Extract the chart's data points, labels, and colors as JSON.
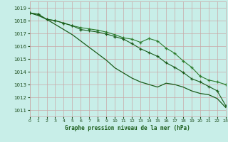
{
  "title": "Graphe pression niveau de la mer (hPa)",
  "bg_color": "#c8eee8",
  "grid_color": "#c8a8a8",
  "line_color1": "#1a5c1a",
  "line_color2": "#2e7d2e",
  "xlim": [
    0,
    23
  ],
  "ylim": [
    1010.5,
    1019.5
  ],
  "yticks": [
    1011,
    1012,
    1013,
    1014,
    1015,
    1016,
    1017,
    1018,
    1019
  ],
  "xticks": [
    0,
    1,
    2,
    3,
    4,
    5,
    6,
    7,
    8,
    9,
    10,
    11,
    12,
    13,
    14,
    15,
    16,
    17,
    18,
    19,
    20,
    21,
    22,
    23
  ],
  "series_smooth": [
    1018.6,
    1018.4,
    1018.1,
    1017.7,
    1017.3,
    1016.9,
    1016.4,
    1015.9,
    1015.4,
    1014.9,
    1014.3,
    1013.9,
    1013.5,
    1013.2,
    1013.0,
    1012.8,
    1013.1,
    1013.0,
    1012.8,
    1012.5,
    1012.3,
    1012.2,
    1011.9,
    1011.2
  ],
  "series_marked1": [
    1018.6,
    1018.5,
    1018.1,
    1018.0,
    1017.8,
    1017.6,
    1017.45,
    1017.35,
    1017.25,
    1017.1,
    1016.9,
    1016.65,
    1016.55,
    1016.3,
    1016.6,
    1016.4,
    1015.85,
    1015.45,
    1014.85,
    1014.35,
    1013.65,
    1013.35,
    1013.2,
    1013.0
  ],
  "series_marked2": [
    1018.6,
    1018.5,
    1018.1,
    1018.0,
    1017.8,
    1017.6,
    1017.3,
    1017.2,
    1017.1,
    1016.95,
    1016.75,
    1016.55,
    1016.2,
    1015.8,
    1015.5,
    1015.2,
    1014.7,
    1014.35,
    1013.95,
    1013.45,
    1013.2,
    1012.85,
    1012.5,
    1011.35
  ]
}
